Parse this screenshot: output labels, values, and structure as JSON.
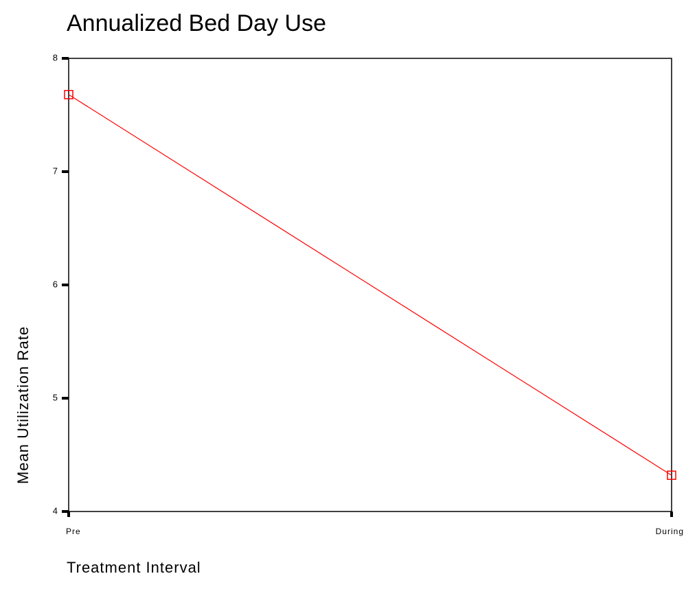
{
  "chart_data": {
    "type": "line",
    "title": "Annualized Bed Day Use",
    "x_label": "Treatment Interval",
    "y_label": "Mean Utilization Rate",
    "categories": [
      "Pre",
      "During"
    ],
    "series": [
      {
        "name": "Mean Utilization Rate",
        "color": "#ff0000",
        "values": [
          7.68,
          4.32
        ]
      }
    ],
    "ylim": [
      4,
      8
    ],
    "yticks": [
      4,
      5,
      6,
      7,
      8
    ],
    "grid": false
  }
}
